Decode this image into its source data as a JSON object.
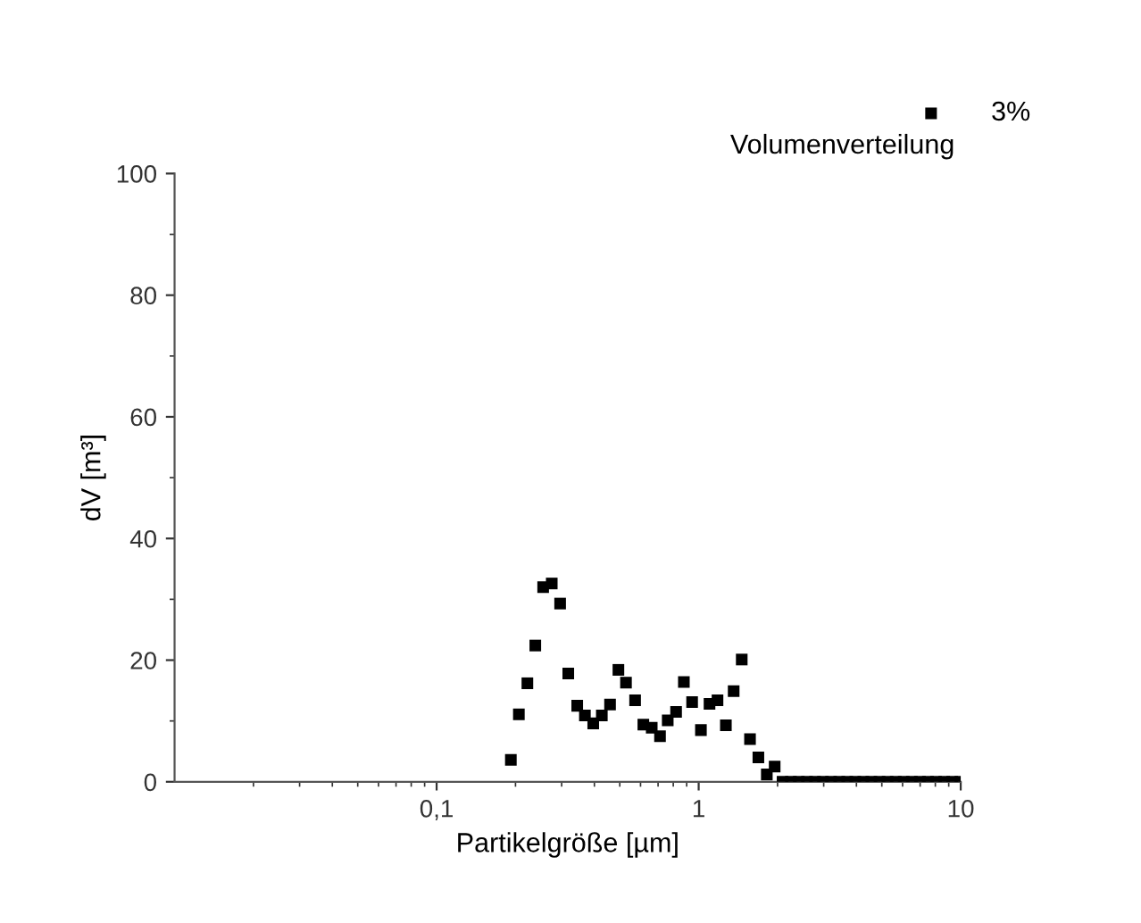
{
  "chart_data": {
    "type": "scatter",
    "xlabel": "Partikelgröße [µm]",
    "ylabel": "dV [m³]",
    "log": "x",
    "xlim": [
      0.01,
      10
    ],
    "xticks": [
      {
        "value": 0.1,
        "label": "0,1"
      },
      1,
      10
    ],
    "ylim": [
      0,
      100
    ],
    "yticks": [
      0,
      20,
      40,
      60,
      80,
      100
    ],
    "grid": false,
    "legend": "top right",
    "marker": "square",
    "annotations": [
      "Volumenverteilung"
    ],
    "series": [
      {
        "name": "3%",
        "color": "#000000",
        "x": [
          0.192,
          0.206,
          0.222,
          0.238,
          0.255,
          0.275,
          0.296,
          0.318,
          0.344,
          0.368,
          0.396,
          0.427,
          0.459,
          0.494,
          0.528,
          0.572,
          0.615,
          0.662,
          0.712,
          0.762,
          0.82,
          0.878,
          0.944,
          1.02,
          1.1,
          1.18,
          1.27,
          1.36,
          1.46,
          1.57,
          1.69,
          1.82,
          1.95,
          2.09,
          2.25,
          2.41,
          2.59,
          2.78,
          2.98,
          3.2,
          3.44,
          3.69,
          3.96,
          4.25,
          4.56,
          4.9,
          5.26,
          5.65,
          6.06,
          6.51,
          6.99,
          7.5,
          8.05,
          8.65,
          9.28,
          9.97
        ],
        "values": [
          3.6,
          11.1,
          16.2,
          22.4,
          32,
          32.6,
          29.3,
          17.8,
          12.5,
          10.9,
          9.6,
          10.9,
          12.7,
          18.4,
          16.3,
          13.4,
          9.4,
          8.9,
          7.5,
          10.1,
          11.5,
          16.4,
          13.1,
          8.5,
          12.8,
          13.4,
          9.3,
          14.9,
          20.1,
          7.0,
          4.0,
          1.2,
          2.5,
          0,
          0,
          0,
          0,
          0,
          0,
          0,
          0,
          0,
          0,
          0,
          0,
          0,
          0,
          0,
          0,
          0,
          0,
          0,
          0,
          0,
          0,
          0
        ]
      }
    ]
  }
}
